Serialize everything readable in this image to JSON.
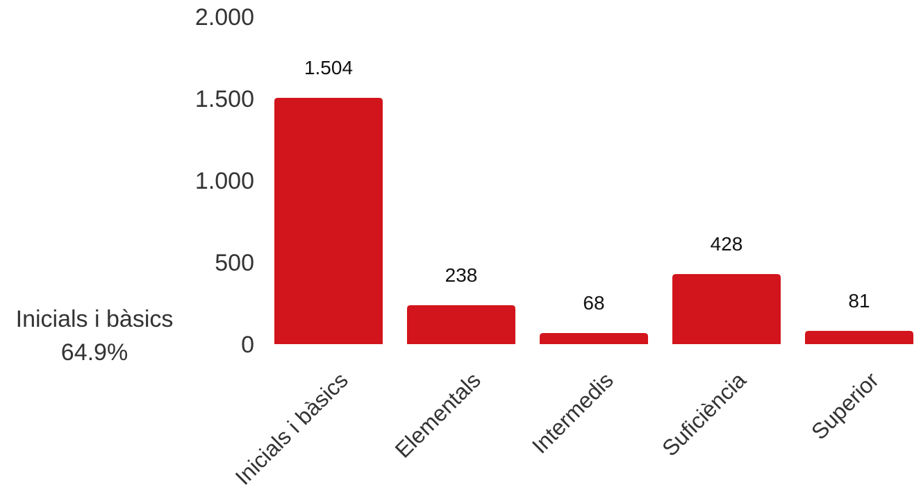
{
  "chart_data": {
    "type": "bar",
    "categories": [
      "Inicials i bàsics",
      "Elementals",
      "Intermedis",
      "Suficiència",
      "Superior"
    ],
    "values": [
      1504,
      238,
      68,
      428,
      81
    ],
    "data_labels": [
      "1.504",
      "238",
      "68",
      "428",
      "81"
    ],
    "y_ticks": [
      {
        "value": 0,
        "label": "0"
      },
      {
        "value": 500,
        "label": "500"
      },
      {
        "value": 1000,
        "label": "1.000"
      },
      {
        "value": 1500,
        "label": "1.500"
      },
      {
        "value": 2000,
        "label": "2.000"
      }
    ],
    "ylim": [
      0,
      2000
    ],
    "grid": false,
    "bar_color": "#d2141c",
    "annotation": {
      "category": "Inicials i bàsics",
      "share": "64.9%"
    }
  }
}
